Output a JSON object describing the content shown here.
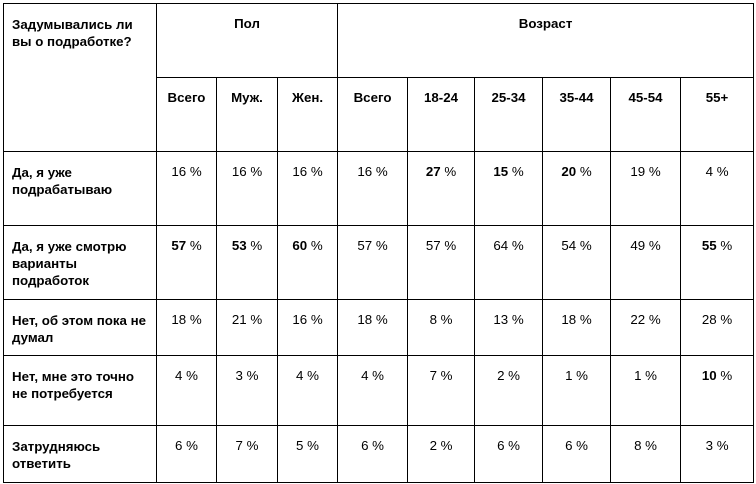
{
  "header": {
    "question": "Задумывались ли вы о подработке?",
    "group_gender": "Пол",
    "group_age": "Возраст",
    "gender_columns": [
      "Всего",
      "Муж.",
      "Жен."
    ],
    "age_columns": [
      "Всего",
      "18-24",
      "25-34",
      "35-44",
      "45-54",
      "55+"
    ]
  },
  "rows": [
    {
      "label": "Да, я уже подрабатываю",
      "gender": [
        {
          "num": "16",
          "bold": false
        },
        {
          "num": "16",
          "bold": false
        },
        {
          "num": "16",
          "bold": false
        }
      ],
      "age": [
        {
          "num": "16",
          "bold": false
        },
        {
          "num": "27",
          "bold": true
        },
        {
          "num": "15",
          "bold": true
        },
        {
          "num": "20",
          "bold": true
        },
        {
          "num": "19",
          "bold": false
        },
        {
          "num": "4",
          "bold": false
        }
      ]
    },
    {
      "label": "Да, я уже смотрю варианты подработок",
      "gender": [
        {
          "num": "57",
          "bold": true
        },
        {
          "num": "53",
          "bold": true
        },
        {
          "num": "60",
          "bold": true
        }
      ],
      "age": [
        {
          "num": "57",
          "bold": false
        },
        {
          "num": "57",
          "bold": false
        },
        {
          "num": "64",
          "bold": false
        },
        {
          "num": "54",
          "bold": false
        },
        {
          "num": "49",
          "bold": false
        },
        {
          "num": "55",
          "bold": true
        }
      ]
    },
    {
      "label": "Нет, об этом пока не думал",
      "gender": [
        {
          "num": "18",
          "bold": false
        },
        {
          "num": "21",
          "bold": false
        },
        {
          "num": "16",
          "bold": false
        }
      ],
      "age": [
        {
          "num": "18",
          "bold": false
        },
        {
          "num": "8",
          "bold": false
        },
        {
          "num": "13",
          "bold": false
        },
        {
          "num": "18",
          "bold": false
        },
        {
          "num": "22",
          "bold": false
        },
        {
          "num": "28",
          "bold": false
        }
      ]
    },
    {
      "label": "Нет, мне это точно не потребуется",
      "gender": [
        {
          "num": "4",
          "bold": false
        },
        {
          "num": "3",
          "bold": false
        },
        {
          "num": "4",
          "bold": false
        }
      ],
      "age": [
        {
          "num": "4",
          "bold": false
        },
        {
          "num": "7",
          "bold": false
        },
        {
          "num": "2",
          "bold": false
        },
        {
          "num": "1",
          "bold": false
        },
        {
          "num": "1",
          "bold": false
        },
        {
          "num": "10",
          "bold": true
        }
      ]
    },
    {
      "label": "Затрудняюсь ответить",
      "gender": [
        {
          "num": "6",
          "bold": false
        },
        {
          "num": "7",
          "bold": false
        },
        {
          "num": "5",
          "bold": false
        }
      ],
      "age": [
        {
          "num": "6",
          "bold": false
        },
        {
          "num": "2",
          "bold": false
        },
        {
          "num": "6",
          "bold": false
        },
        {
          "num": "6",
          "bold": false
        },
        {
          "num": "8",
          "bold": false
        },
        {
          "num": "3",
          "bold": false
        }
      ]
    }
  ],
  "unit": "%"
}
